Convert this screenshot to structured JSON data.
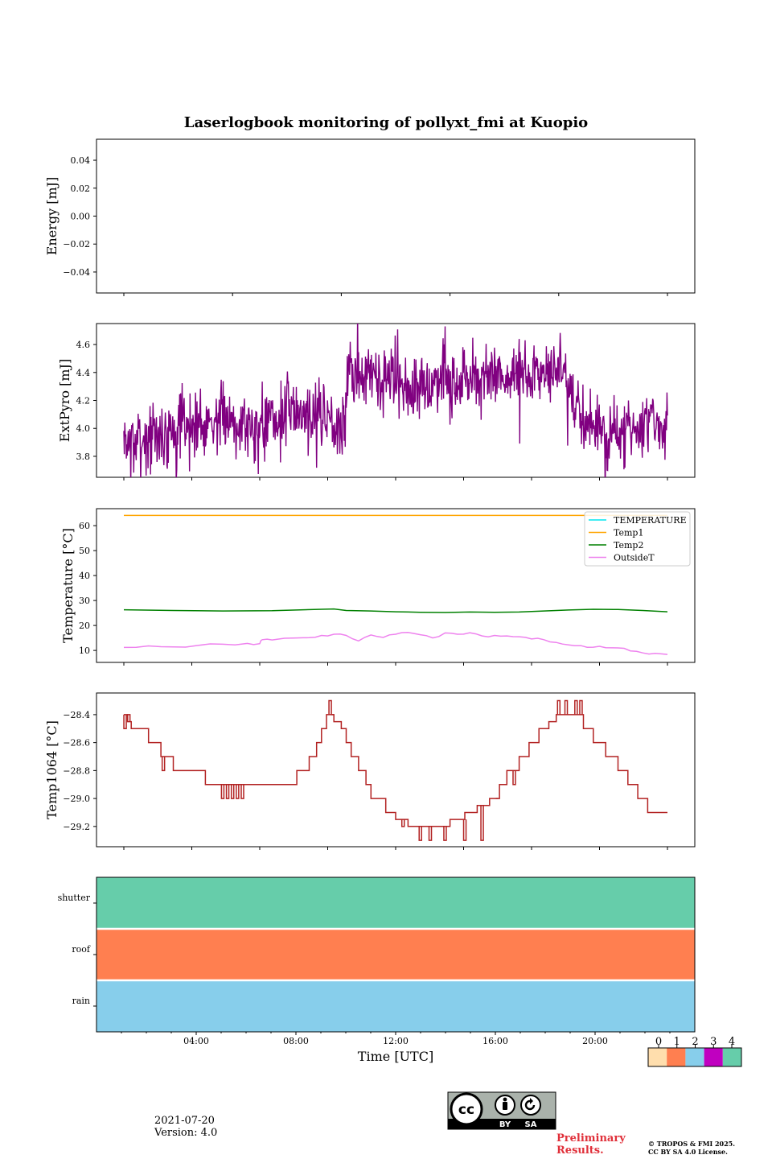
{
  "title": "Laserlogbook monitoring of pollyxt_fmi at Kuopio",
  "chart_data": [
    {
      "id": "energy",
      "type": "line",
      "ylabel": "Energy [mJ]",
      "ylim": [
        -0.055,
        0.055
      ],
      "yticks": [
        -0.04,
        -0.02,
        0.0,
        0.02,
        0.04
      ],
      "ytick_labels": [
        "−0.04",
        "−0.02",
        "0.00",
        "0.02",
        "0.04"
      ],
      "series": []
    },
    {
      "id": "extpyro",
      "type": "line",
      "ylabel": "ExtPyro [mJ]",
      "ylim": [
        3.65,
        4.75
      ],
      "yticks": [
        3.8,
        4.0,
        4.2,
        4.4,
        4.6
      ],
      "ytick_labels": [
        "3.8",
        "4.0",
        "4.2",
        "4.4",
        "4.6"
      ],
      "series": [
        {
          "name": "ExtPyro",
          "color": "#800080",
          "x": [
            0.0,
            0.5,
            1.0,
            1.5,
            2.0,
            2.5,
            3.0,
            3.5,
            4.0,
            4.5,
            5.0,
            5.5,
            6.0,
            6.5,
            7.0,
            7.5,
            8.0,
            8.5,
            8.95,
            9.0,
            9.5,
            10.0,
            10.5,
            11.0,
            11.5,
            12.0,
            12.5,
            13.0,
            13.5,
            14.0,
            14.5,
            15.0,
            15.5,
            16.0,
            16.5,
            17.0,
            17.5,
            17.95,
            18.0,
            18.5,
            19.0,
            19.5,
            20.0,
            20.5,
            21.0,
            21.5,
            22.0
          ],
          "y": [
            3.92,
            3.9,
            3.95,
            3.93,
            3.98,
            4.02,
            4.03,
            4.05,
            4.06,
            4.08,
            4.02,
            4.04,
            4.06,
            4.1,
            4.14,
            4.1,
            4.12,
            4.06,
            3.98,
            4.38,
            4.36,
            4.4,
            4.33,
            4.35,
            4.32,
            4.28,
            4.3,
            4.38,
            4.34,
            4.37,
            4.32,
            4.38,
            4.36,
            4.38,
            4.4,
            4.42,
            4.45,
            4.38,
            4.2,
            4.08,
            4.04,
            3.96,
            3.94,
            3.98,
            4.0,
            4.04,
            4.06
          ],
          "noise": 0.13
        }
      ]
    },
    {
      "id": "temperature",
      "type": "line",
      "ylabel": "Temperature [°C]",
      "ylim": [
        5.2,
        66.8
      ],
      "yticks": [
        10,
        20,
        30,
        40,
        50,
        60
      ],
      "ytick_labels": [
        "10",
        "20",
        "30",
        "40",
        "50",
        "60"
      ],
      "legend": "top-right",
      "series": [
        {
          "name": "TEMPERATURE",
          "color": "#00e5ee",
          "x": [],
          "y": []
        },
        {
          "name": "Temp1",
          "color": "#ffa500",
          "x": [
            0,
            22
          ],
          "y": [
            64.1,
            64.1
          ]
        },
        {
          "name": "Temp2",
          "color": "#008000",
          "x": [
            0,
            2,
            4,
            6,
            8,
            8.5,
            9,
            10,
            11,
            12,
            13,
            14,
            15,
            16,
            17,
            18,
            19,
            20,
            21,
            22
          ],
          "y": [
            26.3,
            26.0,
            25.8,
            25.9,
            26.5,
            26.6,
            26.0,
            25.8,
            25.5,
            25.3,
            25.2,
            25.4,
            25.3,
            25.4,
            25.8,
            26.2,
            26.5,
            26.4,
            26.0,
            25.5
          ]
        },
        {
          "name": "OutsideT",
          "color": "#ee82ee",
          "x": [
            0,
            1,
            2,
            3,
            4,
            5,
            5.5,
            5.6,
            6,
            7,
            7.5,
            8,
            8.5,
            9,
            9.5,
            10,
            10.5,
            11,
            11.5,
            12,
            12.5,
            13,
            13.5,
            14,
            14.5,
            15,
            15.5,
            16,
            16.5,
            17,
            17.5,
            18,
            18.5,
            19,
            19.5,
            20,
            20.5,
            21,
            21.5,
            22
          ],
          "y": [
            11.2,
            11.8,
            11.4,
            12.0,
            12.5,
            12.8,
            12.7,
            14.3,
            14.2,
            15.0,
            15.1,
            16.0,
            16.5,
            16.0,
            13.8,
            16.2,
            15.2,
            16.5,
            17.2,
            16.3,
            15.0,
            17.0,
            16.5,
            17.1,
            15.8,
            16.0,
            15.8,
            15.5,
            14.6,
            14.3,
            13.2,
            12.2,
            11.9,
            11.3,
            11.1,
            11.0,
            9.8,
            9.0,
            8.8,
            8.4
          ]
        }
      ]
    },
    {
      "id": "temp1064",
      "type": "line",
      "ylabel": "Temp1064 [°C]",
      "ylim": [
        -29.345,
        -28.245
      ],
      "yticks": [
        -29.2,
        -29.0,
        -28.8,
        -28.6,
        -28.4
      ],
      "ytick_labels": [
        "−29.2",
        "−29.0",
        "−28.8",
        "−28.6",
        "−28.4"
      ],
      "series": [
        {
          "name": "Temp1064",
          "color": "#b22222",
          "x": [
            0.0,
            0.15,
            0.3,
            0.6,
            1.0,
            1.5,
            2.0,
            2.8,
            3.3,
            4.0,
            4.5,
            5.0,
            5.5,
            6.0,
            6.5,
            7.0,
            7.5,
            7.8,
            8.0,
            8.2,
            8.5,
            8.8,
            9.0,
            9.2,
            9.5,
            9.8,
            10.0,
            10.3,
            10.6,
            11.0,
            11.5,
            11.8,
            12.0,
            12.3,
            12.7,
            13.2,
            13.8,
            14.3,
            14.8,
            15.2,
            15.5,
            16.0,
            16.4,
            16.8,
            17.2,
            17.5,
            17.8,
            18.0,
            18.3,
            18.6,
            19.0,
            19.5,
            20.0,
            20.4,
            20.8,
            21.2,
            21.5,
            21.8,
            22.0
          ],
          "y": [
            -28.4,
            -28.45,
            -28.5,
            -28.5,
            -28.6,
            -28.7,
            -28.8,
            -28.8,
            -28.9,
            -28.9,
            -28.9,
            -28.9,
            -28.9,
            -28.9,
            -28.9,
            -28.8,
            -28.7,
            -28.6,
            -28.5,
            -28.4,
            -28.45,
            -28.5,
            -28.6,
            -28.7,
            -28.8,
            -28.9,
            -29.0,
            -29.0,
            -29.1,
            -29.15,
            -29.2,
            -29.2,
            -29.2,
            -29.2,
            -29.2,
            -29.15,
            -29.1,
            -29.05,
            -29.0,
            -28.9,
            -28.8,
            -28.7,
            -28.6,
            -28.5,
            -28.45,
            -28.4,
            -28.4,
            -28.4,
            -28.4,
            -28.5,
            -28.6,
            -28.7,
            -28.8,
            -28.9,
            -29.0,
            -29.1,
            -29.1,
            -29.1,
            -29.1
          ],
          "spikes": [
            {
              "x": 0.05,
              "y": -28.5
            },
            {
              "x": 0.2,
              "y": -28.4
            },
            {
              "x": 1.6,
              "y": -28.8
            },
            {
              "x": 4.0,
              "y": -29.0
            },
            {
              "x": 4.2,
              "y": -29.0
            },
            {
              "x": 4.4,
              "y": -29.0
            },
            {
              "x": 4.6,
              "y": -29.0
            },
            {
              "x": 4.8,
              "y": -29.0
            },
            {
              "x": 8.1,
              "y": -28.5
            },
            {
              "x": 8.35,
              "y": -28.3
            },
            {
              "x": 8.45,
              "y": -28.4
            },
            {
              "x": 11.3,
              "y": -29.2
            },
            {
              "x": 12.0,
              "y": -29.3
            },
            {
              "x": 12.4,
              "y": -29.3
            },
            {
              "x": 13.0,
              "y": -29.3
            },
            {
              "x": 13.8,
              "y": -29.3
            },
            {
              "x": 14.5,
              "y": -29.3
            },
            {
              "x": 15.1,
              "y": -29.0
            },
            {
              "x": 15.8,
              "y": -28.9
            },
            {
              "x": 17.6,
              "y": -28.3
            },
            {
              "x": 17.9,
              "y": -28.3
            },
            {
              "x": 18.3,
              "y": -28.3
            },
            {
              "x": 18.5,
              "y": -28.3
            }
          ]
        }
      ]
    },
    {
      "id": "status",
      "type": "heatmap",
      "xlabel": "Time [UTC]",
      "rows": [
        "shutter",
        "roof",
        "rain"
      ],
      "row_values": [
        4,
        1,
        2
      ],
      "xticks": [
        "04:00",
        "08:00",
        "12:00",
        "16:00",
        "20:00"
      ]
    }
  ],
  "colorbar": {
    "ticks": [
      "0",
      "1",
      "2",
      "3",
      "4"
    ],
    "colors": [
      "#ffdead",
      "#ff7f50",
      "#87ceeb",
      "#c000c0",
      "#66cdaa"
    ]
  },
  "footer": {
    "date": "2021-07-20",
    "version": "Version: 4.0",
    "preliminary": [
      "Preliminary",
      "Results."
    ],
    "copyright": [
      "© TROPOS & FMI 2025.",
      "CC BY SA 4.0 License."
    ],
    "cc_labels": [
      "BY",
      "SA"
    ]
  }
}
